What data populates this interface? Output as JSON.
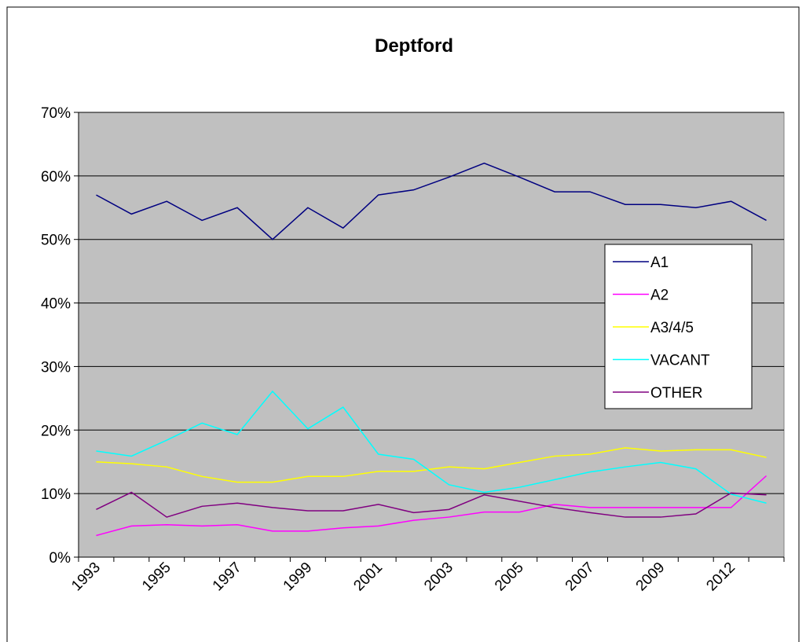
{
  "chart_data": {
    "type": "line",
    "title": "Deptford",
    "categories": [
      "1993",
      null,
      "1995",
      null,
      "1997",
      null,
      "1999",
      null,
      "2001",
      null,
      "2003",
      null,
      "2005",
      null,
      "2007",
      null,
      "2009",
      null,
      "2012",
      null
    ],
    "series": [
      {
        "name": "A1",
        "color": "#000080",
        "values": [
          57,
          54,
          56,
          53,
          55,
          50,
          55,
          51.8,
          57,
          57.8,
          59.8,
          62,
          59.8,
          57.5,
          57.5,
          55.5,
          55.5,
          55,
          56,
          53
        ]
      },
      {
        "name": "A2",
        "color": "#ff00ff",
        "values": [
          3.4,
          4.9,
          5.1,
          4.9,
          5.1,
          4.1,
          4.1,
          4.6,
          4.9,
          5.8,
          6.3,
          7.1,
          7.1,
          8.3,
          7.8,
          7.8,
          7.8,
          7.8,
          7.8,
          12.8
        ]
      },
      {
        "name": "A3/4/5",
        "color": "#ffff00",
        "values": [
          15,
          14.7,
          14.2,
          12.7,
          11.8,
          11.8,
          12.7,
          12.7,
          13.5,
          13.5,
          14.2,
          13.9,
          14.9,
          15.9,
          16.2,
          17.2,
          16.7,
          16.9,
          16.9,
          15.7
        ]
      },
      {
        "name": "VACANT",
        "color": "#00ffff",
        "values": [
          16.7,
          15.9,
          18.4,
          21.1,
          19.3,
          26.1,
          20.2,
          23.6,
          16.2,
          15.4,
          11.4,
          10.2,
          11,
          12.2,
          13.4,
          14.2,
          14.9,
          13.9,
          9.9,
          8.5
        ]
      },
      {
        "name": "OTHER",
        "color": "#800080",
        "values": [
          7.5,
          10.2,
          6.3,
          8,
          8.5,
          7.8,
          7.3,
          7.3,
          8.3,
          7,
          7.5,
          9.8,
          8.8,
          7.8,
          7,
          6.3,
          6.3,
          6.8,
          10.1,
          9.8
        ]
      }
    ],
    "ylim": [
      0,
      70
    ],
    "yticks": [
      {
        "value": 0,
        "label": "0%"
      },
      {
        "value": 10,
        "label": "10%"
      },
      {
        "value": 20,
        "label": "20%"
      },
      {
        "value": 30,
        "label": "30%"
      },
      {
        "value": 40,
        "label": "40%"
      },
      {
        "value": 50,
        "label": "50%"
      },
      {
        "value": 60,
        "label": "60%"
      },
      {
        "value": 70,
        "label": "70%"
      }
    ],
    "grid": true,
    "legend": "right",
    "plot_background": "#c0c0c0"
  }
}
